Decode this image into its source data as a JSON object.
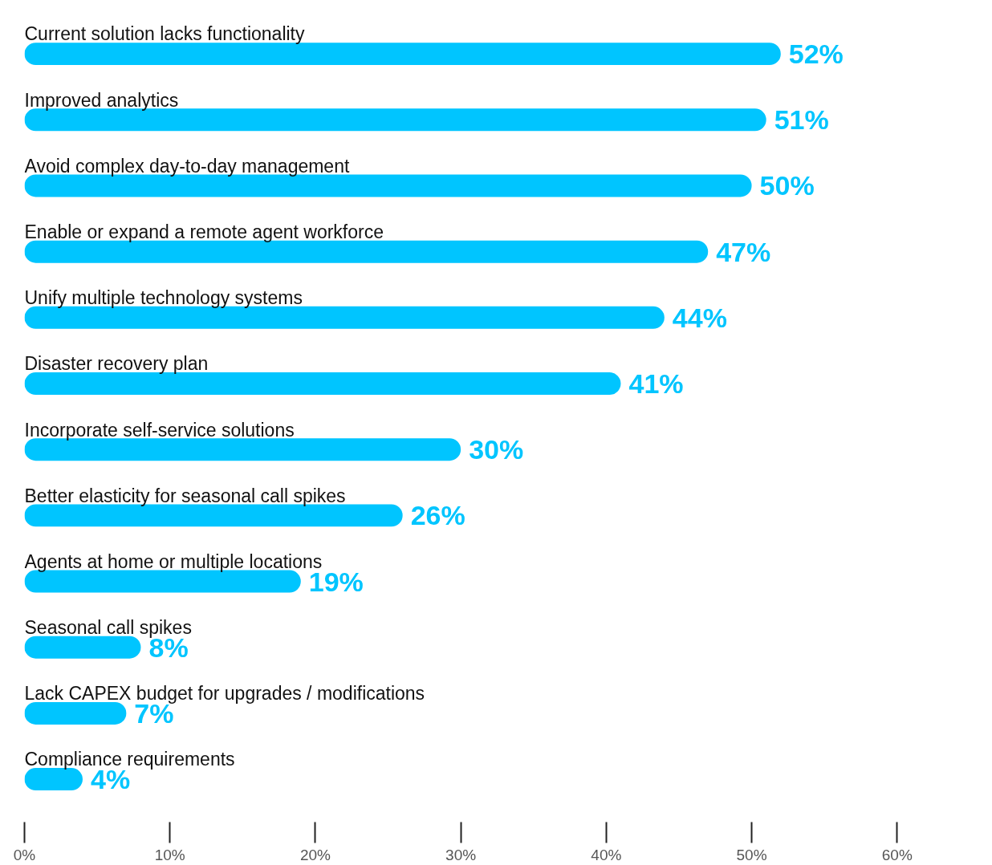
{
  "chart_data": {
    "type": "bar",
    "orientation": "horizontal",
    "categories": [
      "Current solution lacks functionality",
      "Improved analytics",
      "Avoid complex day-to-day management",
      "Enable or expand a remote agent workforce",
      "Unify multiple technology systems",
      "Disaster recovery plan",
      "Incorporate self-service solutions",
      "Better elasticity for seasonal call spikes",
      "Agents at home or multiple locations",
      "Seasonal call spikes",
      "Lack CAPEX budget for upgrades / modifications",
      "Compliance requirements"
    ],
    "values": [
      52,
      51,
      50,
      47,
      44,
      41,
      30,
      26,
      19,
      8,
      7,
      4
    ],
    "color": "#00c5ff",
    "value_labels": [
      "52%",
      "51%",
      "50%",
      "47%",
      "44%",
      "41%",
      "30%",
      "26%",
      "19%",
      "8%",
      "7%",
      "4%"
    ],
    "xlim": [
      0,
      60
    ],
    "xticks": [
      {
        "value": 0,
        "label": "0%"
      },
      {
        "value": 10,
        "label": "10%"
      },
      {
        "value": 20,
        "label": "20%"
      },
      {
        "value": 30,
        "label": "30%"
      },
      {
        "value": 40,
        "label": "40%"
      },
      {
        "value": 50,
        "label": "50%"
      },
      {
        "value": 60,
        "label": "60%"
      }
    ],
    "grid": false
  }
}
